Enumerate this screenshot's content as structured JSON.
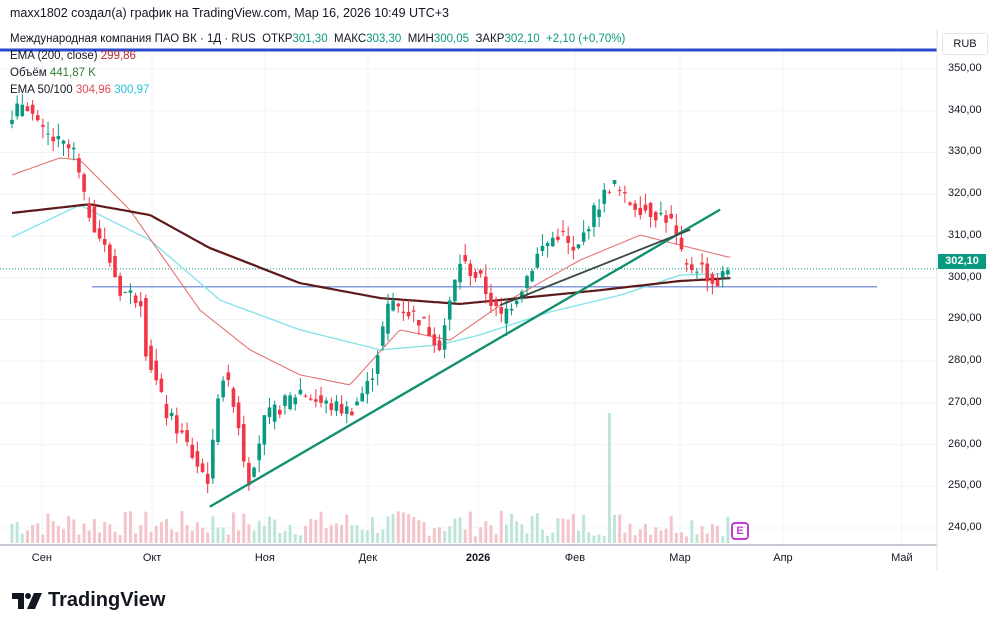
{
  "credit": "maxx1802 создал(а) график на TradingView.com, Мар 16, 2026 10:49 UTC+3",
  "legend": {
    "symbol": "Международная компания ПАО ВК · 1Д · RUS",
    "open_label": "ОТКР",
    "open": "301,30",
    "high_label": "МАКС",
    "high": "303,30",
    "low_label": "МИН",
    "low": "300,05",
    "close_label": "ЗАКР",
    "close": "302,10",
    "change": "+2,10 (+0,70%)",
    "ema200_label": "EMA (200, close)",
    "ema200": "299,86",
    "volume_label": "Объём",
    "volume": "441,87 K",
    "ema50100_label": "EMA 50/100",
    "ema50": "304,96",
    "ema100": "300,97"
  },
  "currency": "RUB",
  "last_price_label": "302,10",
  "earnings_badge": "E",
  "logo_text": "TradingView",
  "colors": {
    "up": "#089981",
    "down": "#f23645",
    "ema200": "#5d1a1a",
    "ema50": "#e57373",
    "ema100": "#7fe3e8",
    "trend": "#12906f",
    "hline": "#5b7fd6",
    "header_line": "#2a4bd0"
  },
  "chart_data": {
    "type": "candlestick",
    "title": "Международная компания ПАО ВК · 1Д",
    "ylim": [
      236,
      355
    ],
    "y_ticks": [
      "350,00",
      "340,00",
      "330,00",
      "320,00",
      "310,00",
      "300,00",
      "290,00",
      "280,00",
      "270,00",
      "260,00",
      "250,00",
      "240,00"
    ],
    "y_tick_values": [
      350,
      340,
      330,
      320,
      310,
      300,
      290,
      280,
      270,
      260,
      250,
      240
    ],
    "x_ticks": [
      {
        "label": "Сен",
        "bar": 5.8,
        "bold": false
      },
      {
        "label": "Окт",
        "bar": 27.2,
        "bold": false
      },
      {
        "label": "Ноя",
        "bar": 49.1,
        "bold": false
      },
      {
        "label": "Дек",
        "bar": 69.1,
        "bold": false
      },
      {
        "label": "2026",
        "bar": 90.5,
        "bold": true
      },
      {
        "label": "Фев",
        "bar": 109.3,
        "bold": false
      },
      {
        "label": "Мар",
        "bar": 129.7,
        "bold": false
      },
      {
        "label": "Апр",
        "bar": 149.7,
        "bold": false
      },
      {
        "label": "Май",
        "bar": 172.8,
        "bold": false
      }
    ],
    "bars": 140,
    "close_waypoints": [
      [
        0,
        338
      ],
      [
        2.5,
        343
      ],
      [
        5.4,
        335
      ],
      [
        12,
        330
      ],
      [
        14,
        318.6
      ],
      [
        19,
        304
      ],
      [
        21,
        297
      ],
      [
        25,
        295
      ],
      [
        26,
        283
      ],
      [
        29.7,
        268
      ],
      [
        32.6,
        263
      ],
      [
        36.5,
        254
      ],
      [
        38.4,
        251.5
      ],
      [
        40.4,
        278
      ],
      [
        43.3,
        270
      ],
      [
        45.8,
        251
      ],
      [
        49.1,
        266
      ],
      [
        56,
        273
      ],
      [
        59.8,
        270
      ],
      [
        65.6,
        268
      ],
      [
        69.5,
        275
      ],
      [
        73.4,
        294.6
      ],
      [
        79.2,
        290
      ],
      [
        83.1,
        284
      ],
      [
        87,
        304
      ],
      [
        90.9,
        299.5
      ],
      [
        94.8,
        290
      ],
      [
        98.6,
        297
      ],
      [
        102.5,
        306.6
      ],
      [
        106.4,
        311
      ],
      [
        109.3,
        305
      ],
      [
        112.2,
        314
      ],
      [
        116.5,
        323
      ],
      [
        119,
        318.6
      ],
      [
        123.9,
        316
      ],
      [
        127.8,
        314
      ],
      [
        130.7,
        302
      ],
      [
        133.6,
        303
      ],
      [
        136.5,
        298
      ],
      [
        139,
        302.1
      ]
    ],
    "ema200_waypoints": [
      [
        0,
        315.5
      ],
      [
        15.1,
        317.6
      ],
      [
        26.8,
        315
      ],
      [
        38.4,
        307.1
      ],
      [
        55.9,
        298.7
      ],
      [
        71.5,
        295.1
      ],
      [
        87,
        293.7
      ],
      [
        98.6,
        295.1
      ],
      [
        114.2,
        297
      ],
      [
        129.7,
        299.2
      ],
      [
        139,
        299.86
      ]
    ],
    "ema100_waypoints": [
      [
        0,
        309.7
      ],
      [
        13.2,
        317.4
      ],
      [
        26.8,
        309
      ],
      [
        40.4,
        294.6
      ],
      [
        55.9,
        287.5
      ],
      [
        71.5,
        282.7
      ],
      [
        83.1,
        283.9
      ],
      [
        90.9,
        286.3
      ],
      [
        104.5,
        291.8
      ],
      [
        118.1,
        295.8
      ],
      [
        129.7,
        300.6
      ],
      [
        139,
        300.97
      ]
    ],
    "ema50_waypoints": [
      [
        0,
        324.6
      ],
      [
        9.3,
        328.7
      ],
      [
        13.2,
        328.2
      ],
      [
        22.9,
        316.2
      ],
      [
        36.5,
        292.2
      ],
      [
        46.2,
        282.7
      ],
      [
        55.9,
        276.7
      ],
      [
        65.6,
        274.3
      ],
      [
        75.3,
        287.5
      ],
      [
        85,
        285
      ],
      [
        94.8,
        293.4
      ],
      [
        110.3,
        304.2
      ],
      [
        122,
        310.2
      ],
      [
        129.7,
        307.8
      ],
      [
        139,
        304.96
      ]
    ],
    "trendlines": [
      {
        "name": "support",
        "from": [
          38.4,
          245.1
        ],
        "to": [
          137.5,
          316.3
        ]
      },
      {
        "name": "inner",
        "from": [
          94.8,
          293.4
        ],
        "to": [
          131.7,
          311.5
        ]
      }
    ],
    "horizontal_line": {
      "price": 297.8,
      "from_bar": 15.5,
      "to_bar": 168
    },
    "volume": {
      "typical_max": 0.25,
      "spike_bar": 116,
      "spike": 1.0,
      "seed": 7
    }
  }
}
